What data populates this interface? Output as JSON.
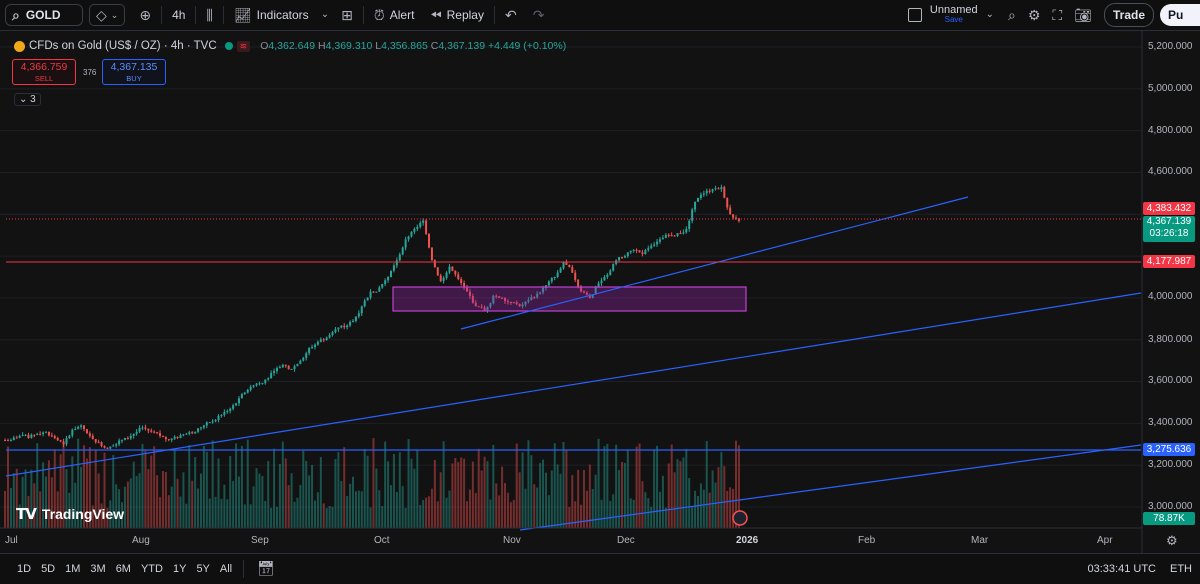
{
  "toolbar": {
    "symbol": "GOLD",
    "interval": "4h",
    "indicators_label": "Indicators",
    "alert_label": "Alert",
    "replay_label": "Replay",
    "layout_name": "Unnamed",
    "layout_sub": "Save",
    "trade_label": "Trade",
    "publish_label": "Pu"
  },
  "legend": {
    "title": "CFDs on Gold (US$ / OZ) · 4h · TVC",
    "o_label": "O",
    "o": "4,362.649",
    "h_label": "H",
    "h": "4,369.310",
    "l_label": "L",
    "l": "4,356.865",
    "c_label": "C",
    "c": "4,367.139",
    "change": "+4.449 (+0.10%)",
    "sell_price": "4,366.759",
    "sell_label": "SELL",
    "spread": "376",
    "buy_price": "4,367.135",
    "buy_label": "BUY",
    "collapse_count": "3"
  },
  "price_axis": {
    "labels": [
      "5,200.000",
      "5,000.000",
      "4,800.000",
      "4,600.000",
      "4,000.000",
      "3,800.000",
      "3,600.000",
      "3,400.000",
      "3,200.000",
      "3,000.000"
    ],
    "tag_red_top": "4,383.432",
    "tag_green_price": "4,367.139",
    "tag_green_timer": "03:26:18",
    "tag_red_line": "4,177.987",
    "tag_blue_line": "3,275.636",
    "tag_volume": "78.87K"
  },
  "time_axis": {
    "labels": [
      "Jul",
      "Aug",
      "Sep",
      "Oct",
      "Nov",
      "Dec",
      "2026",
      "Feb",
      "Mar",
      "Apr"
    ]
  },
  "brand": {
    "logo_text": "TradingView"
  },
  "bottombar": {
    "ranges": [
      "1D",
      "5D",
      "1M",
      "3M",
      "6M",
      "YTD",
      "1Y",
      "5Y",
      "All"
    ],
    "clock": "03:33:41 UTC",
    "session": "ETH"
  },
  "colors": {
    "up": "#26a69a",
    "down": "#ef5350",
    "line": "#2962ff",
    "red_line": "#f23645",
    "zone": "#9c27b0"
  },
  "chart_data": {
    "type": "candlestick",
    "series_price": [
      3320,
      3340,
      3330,
      3350,
      3360,
      3330,
      3300,
      3370,
      3390,
      3340,
      3310,
      3280,
      3300,
      3330,
      3350,
      3380,
      3360,
      3340,
      3320,
      3330,
      3350,
      3360,
      3390,
      3410,
      3440,
      3470,
      3520,
      3560,
      3590,
      3610,
      3650,
      3680,
      3660,
      3700,
      3760,
      3790,
      3810,
      3850,
      3860,
      3890,
      3960,
      4030,
      4050,
      4100,
      4180,
      4280,
      4330,
      4370,
      4180,
      4080,
      4150,
      4090,
      4030,
      3960,
      3940,
      4010,
      4000,
      3980,
      3960,
      3990,
      4020,
      4060,
      4100,
      4170,
      4120,
      4030,
      4000,
      4070,
      4110,
      4180,
      4200,
      4230,
      4210,
      4250,
      4280,
      4300,
      4310,
      4330,
      4460,
      4500,
      4520,
      4530,
      4400,
      4367
    ],
    "ylim": [
      2950,
      5250
    ],
    "horizontal_levels": [
      4383.432,
      4177.987,
      3275.636
    ],
    "volume_last": "78.87K"
  }
}
